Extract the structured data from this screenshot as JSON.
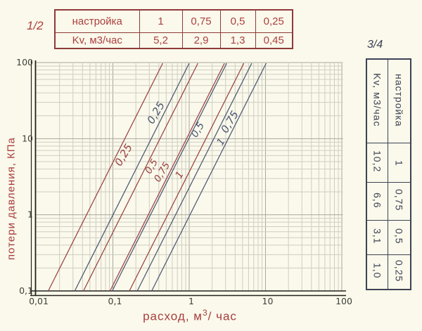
{
  "page": {
    "background": "#faf9eb"
  },
  "tables": {
    "half": {
      "valve_label": "1/2",
      "header_row": [
        "настройка",
        "1",
        "0,75",
        "0,5",
        "0,25"
      ],
      "kv_row": [
        "Kv,  м3/час",
        "5,2",
        "2,9",
        "1,3",
        "0,45"
      ]
    },
    "three_quarter": {
      "valve_label": "3/4",
      "setting_header": "настройка",
      "kv_header": "Kv,  м3/час",
      "rows": [
        {
          "setting": "1",
          "kv": "10,2"
        },
        {
          "setting": "0,75",
          "kv": "6,6"
        },
        {
          "setting": "0,5",
          "kv": "3,1"
        },
        {
          "setting": "0,25",
          "kv": "1,0"
        }
      ]
    }
  },
  "chart_data": {
    "type": "line",
    "scale": "log-log",
    "title": "",
    "ylabel": "потери давления, КПа",
    "xlabel_parts": {
      "base": "расход, м",
      "sup": "3",
      "rest": "/ час"
    },
    "xlim": [
      0.01,
      100
    ],
    "ylim": [
      0.1,
      100
    ],
    "x_ticks": [
      "0,01",
      "0,1",
      "1",
      "10",
      "100"
    ],
    "x_tick_values": [
      0.01,
      0.1,
      1,
      10,
      100
    ],
    "y_ticks": [
      "0,1",
      "1",
      "10",
      "100"
    ],
    "y_tick_values": [
      0.1,
      1,
      10,
      100
    ],
    "grid": "log minor + decade lines",
    "relation": "dP_KPa = 100 * (Q / Kv)^2",
    "series": [
      {
        "valve": "1/2",
        "label": "0,25",
        "kv": 0.45,
        "color": "#9b4242"
      },
      {
        "valve": "1/2",
        "label": "0,5",
        "kv": 1.3,
        "color": "#9b4242"
      },
      {
        "valve": "1/2",
        "label": "0,75",
        "kv": 2.9,
        "color": "#9b4242"
      },
      {
        "valve": "1/2",
        "label": "1",
        "kv": 5.2,
        "color": "#9b4242"
      },
      {
        "valve": "3/4",
        "label": "0,25",
        "kv": 1.0,
        "color": "#4c5775"
      },
      {
        "valve": "3/4",
        "label": "0,5",
        "kv": 3.1,
        "color": "#4c5775"
      },
      {
        "valve": "3/4",
        "label": "0,75",
        "kv": 6.6,
        "color": "#4c5775"
      },
      {
        "valve": "3/4",
        "label": "1",
        "kv": 10.2,
        "color": "#4c5775"
      }
    ],
    "colors": {
      "red_series": "#9b4242",
      "blue_series": "#4c5775",
      "grid_minor": "#cfcec1",
      "grid_major": "#a9a89b",
      "axis": "#22221c",
      "tick_text": "#3f3f38",
      "axis_title": "#a83c3c"
    }
  }
}
